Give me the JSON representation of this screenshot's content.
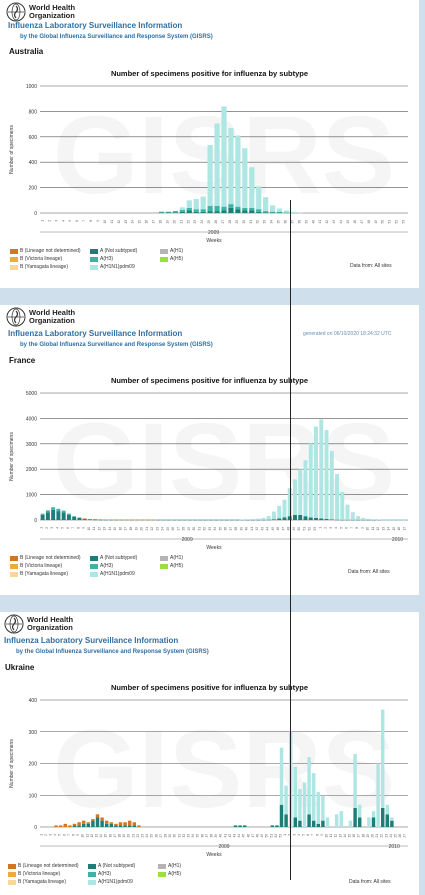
{
  "logo": {
    "line1": "World Health",
    "line2": "Organization"
  },
  "system": {
    "title": "Influenza Laboratory Surveillance Information",
    "subtitle": "by the Global Influenza Surveillance and Response System (GISRS)"
  },
  "generated_text": "generated on 06/10/2020 18:24:32 UTC",
  "data_from": "Data from: All sites",
  "data_from_ukraine": "Data from: All sites",
  "chart_title": "Number of specimens positive for influenza by subtype",
  "ylabel": "Number of specimens",
  "xlabel": "Weeks",
  "watermark": "GISRS",
  "legend": {
    "items": [
      {
        "label": "B (Lineage not determined)",
        "color": "#d2771f"
      },
      {
        "label": "B (Victoria lineage)",
        "color": "#f0a93a"
      },
      {
        "label": "B (Yamagata lineage)",
        "color": "#f6d59e"
      },
      {
        "label": "A (Not subtyped)",
        "color": "#1e7d78"
      },
      {
        "label": "A(H3)",
        "color": "#3fb2a6"
      },
      {
        "label": "A(H1N1)pdm09",
        "color": "#aee6e3"
      },
      {
        "label": "A(H1)",
        "color": "#b4b4b4"
      },
      {
        "label": "A(H5)",
        "color": "#9be03a"
      }
    ]
  },
  "colors": {
    "not_subtyped": "#1e7d78",
    "h3": "#3fb2a6",
    "pdm09": "#aee6e3",
    "b_lineage_nd": "#d2771f",
    "h1": "#b4b4b4"
  },
  "chart_data": [
    {
      "country": "Australia",
      "type": "bar",
      "title": "Number of specimens positive for influenza by subtype",
      "xlabel": "Weeks",
      "ylabel": "Number of specimens",
      "ylim": [
        0,
        1000
      ],
      "yticks": [
        0,
        200,
        400,
        600,
        800,
        1000
      ],
      "grid": true,
      "year_labels": [
        {
          "label": "2009",
          "at_index": 25
        }
      ],
      "weeks": [
        "1",
        "2",
        "3",
        "4",
        "5",
        "6",
        "7",
        "8",
        "9",
        "10",
        "11",
        "12",
        "13",
        "14",
        "15",
        "16",
        "17",
        "18",
        "19",
        "20",
        "21",
        "22",
        "23",
        "24",
        "25",
        "26",
        "27",
        "28",
        "29",
        "30",
        "31",
        "32",
        "33",
        "34",
        "35",
        "36",
        "37",
        "38",
        "39",
        "40",
        "41",
        "42",
        "43",
        "44",
        "45",
        "46",
        "47",
        "48",
        "49",
        "50",
        "51",
        "52",
        "53"
      ],
      "series": [
        {
          "name": "A (Not subtyped)",
          "key": "not_subtyped",
          "values": [
            0,
            0,
            0,
            0,
            0,
            0,
            0,
            0,
            0,
            0,
            0,
            0,
            0,
            0,
            0,
            0,
            0,
            5,
            5,
            5,
            10,
            20,
            10,
            10,
            15,
            15,
            20,
            40,
            30,
            20,
            20,
            10,
            5,
            5,
            5,
            0,
            0,
            0,
            0,
            0,
            0,
            0,
            0,
            0,
            0,
            0,
            0,
            0,
            0,
            0,
            0,
            0,
            0
          ]
        },
        {
          "name": "A(H3)",
          "key": "h3",
          "values": [
            0,
            0,
            0,
            0,
            0,
            0,
            0,
            0,
            0,
            0,
            0,
            0,
            0,
            0,
            0,
            0,
            0,
            5,
            5,
            10,
            15,
            20,
            20,
            20,
            40,
            40,
            30,
            30,
            20,
            20,
            20,
            20,
            10,
            5,
            5,
            5,
            0,
            0,
            0,
            0,
            0,
            0,
            0,
            0,
            0,
            0,
            0,
            0,
            0,
            0,
            0,
            0,
            0
          ]
        },
        {
          "name": "A(H1N1)pdm09",
          "key": "pdm09",
          "values": [
            0,
            0,
            0,
            0,
            0,
            0,
            0,
            0,
            0,
            0,
            0,
            0,
            0,
            0,
            0,
            0,
            0,
            0,
            0,
            0,
            20,
            60,
            80,
            100,
            480,
            650,
            790,
            600,
            560,
            470,
            320,
            180,
            110,
            50,
            25,
            15,
            10,
            5,
            0,
            0,
            0,
            0,
            0,
            0,
            0,
            0,
            0,
            0,
            0,
            0,
            0,
            0,
            0
          ]
        }
      ]
    },
    {
      "country": "France",
      "type": "bar",
      "title": "Number of specimens positive for influenza by subtype",
      "xlabel": "Weeks",
      "ylabel": "Number of specimens",
      "ylim": [
        0,
        5000
      ],
      "yticks": [
        0,
        1000,
        2000,
        3000,
        4000,
        5000
      ],
      "grid": true,
      "year_labels": [
        {
          "label": "2009",
          "at_index": 28
        },
        {
          "label": "2010",
          "at_index": 68
        }
      ],
      "weeks_count": 70,
      "series": [
        {
          "name": "A (Not subtyped)",
          "key": "not_subtyped",
          "values": [
            200,
            300,
            400,
            350,
            300,
            200,
            120,
            80,
            40,
            20,
            10,
            5,
            5,
            5,
            5,
            5,
            5,
            5,
            5,
            5,
            5,
            5,
            5,
            5,
            5,
            5,
            5,
            5,
            5,
            5,
            5,
            5,
            5,
            5,
            5,
            5,
            5,
            5,
            5,
            5,
            5,
            5,
            5,
            10,
            30,
            60,
            100,
            150,
            200,
            200,
            150,
            100,
            80,
            60,
            40,
            20,
            10,
            5,
            5,
            5,
            5,
            5,
            5,
            5,
            5,
            5,
            5,
            5,
            5,
            5
          ]
        },
        {
          "name": "A(H3)",
          "key": "h3",
          "values": [
            50,
            80,
            100,
            90,
            70,
            50,
            30,
            20,
            10,
            5,
            5,
            0,
            0,
            0,
            0,
            0,
            0,
            0,
            0,
            0,
            0,
            0,
            0,
            0,
            0,
            0,
            0,
            0,
            0,
            0,
            0,
            0,
            0,
            0,
            0,
            0,
            0,
            0,
            0,
            0,
            0,
            0,
            0,
            0,
            0,
            0,
            0,
            0,
            0,
            0,
            0,
            0,
            0,
            0,
            0,
            0,
            0,
            0,
            0,
            0,
            0,
            0,
            0,
            0,
            0,
            0,
            0,
            0,
            0,
            0
          ]
        },
        {
          "name": "A(H1N1)pdm09",
          "key": "pdm09",
          "values": [
            0,
            0,
            0,
            0,
            0,
            0,
            0,
            0,
            0,
            0,
            0,
            0,
            0,
            0,
            0,
            0,
            0,
            0,
            0,
            0,
            0,
            0,
            0,
            0,
            0,
            0,
            0,
            0,
            0,
            0,
            0,
            0,
            0,
            0,
            0,
            0,
            0,
            0,
            10,
            20,
            30,
            50,
            80,
            150,
            300,
            500,
            700,
            1100,
            1400,
            1800,
            2200,
            2900,
            3600,
            3900,
            3500,
            2700,
            1800,
            1100,
            600,
            300,
            150,
            80,
            40,
            20,
            10,
            5,
            5,
            5,
            5,
            5
          ]
        },
        {
          "name": "B (Lineage not determined)",
          "key": "b_lineage_nd",
          "values": [
            0,
            0,
            0,
            0,
            0,
            0,
            0,
            0,
            10,
            15,
            20,
            20,
            15,
            10,
            10,
            5,
            5,
            5,
            5,
            5,
            5,
            5,
            0,
            0,
            0,
            0,
            0,
            0,
            0,
            0,
            0,
            0,
            0,
            0,
            0,
            0,
            0,
            0,
            0,
            0,
            0,
            0,
            0,
            0,
            0,
            0,
            0,
            0,
            0,
            0,
            0,
            0,
            0,
            0,
            0,
            0,
            0,
            0,
            0,
            0,
            0,
            0,
            0,
            0,
            0,
            0,
            0,
            0,
            0,
            0
          ]
        }
      ]
    },
    {
      "country": "Ukraine",
      "type": "bar",
      "title": "Number of specimens positive for influenza by subtype",
      "xlabel": "Weeks",
      "ylabel": "Number of specimens",
      "ylim": [
        0,
        400
      ],
      "yticks": [
        0,
        100,
        200,
        300,
        400
      ],
      "grid": true,
      "year_labels": [
        {
          "label": "2009",
          "at_index": 40
        },
        {
          "label": "2010",
          "at_index": 77
        }
      ],
      "weeks_count": 80,
      "series": [
        {
          "name": "A (Not subtyped)",
          "key": "not_subtyped",
          "values": [
            0,
            0,
            0,
            0,
            0,
            0,
            0,
            5,
            5,
            10,
            10,
            20,
            30,
            20,
            10,
            10,
            5,
            5,
            5,
            5,
            5,
            0,
            0,
            0,
            0,
            0,
            0,
            0,
            0,
            0,
            0,
            0,
            0,
            0,
            0,
            0,
            0,
            0,
            0,
            0,
            0,
            0,
            5,
            5,
            5,
            0,
            0,
            0,
            0,
            0,
            5,
            5,
            70,
            40,
            0,
            30,
            20,
            0,
            40,
            20,
            10,
            20,
            0,
            0,
            0,
            0,
            0,
            0,
            60,
            30,
            0,
            0,
            30,
            0,
            60,
            40,
            20,
            0,
            0,
            0
          ]
        },
        {
          "name": "A(H3)",
          "key": "h3",
          "values": [
            0,
            0,
            0,
            0,
            0,
            0,
            0,
            0,
            0,
            0,
            0,
            0,
            0,
            0,
            0,
            0,
            0,
            0,
            0,
            0,
            0,
            0,
            0,
            0,
            0,
            0,
            0,
            0,
            0,
            0,
            0,
            0,
            0,
            0,
            0,
            0,
            0,
            0,
            0,
            0,
            0,
            0,
            0,
            0,
            0,
            0,
            0,
            0,
            0,
            0,
            0,
            0,
            0,
            0,
            0,
            0,
            0,
            0,
            0,
            0,
            0,
            0,
            0,
            0,
            0,
            0,
            0,
            0,
            0,
            0,
            0,
            0,
            0,
            0,
            0,
            0,
            0,
            0,
            0,
            0
          ]
        },
        {
          "name": "A(H1N1)pdm09",
          "key": "pdm09",
          "values": [
            0,
            0,
            0,
            0,
            0,
            0,
            0,
            0,
            0,
            0,
            0,
            0,
            0,
            0,
            0,
            0,
            0,
            0,
            0,
            0,
            0,
            0,
            0,
            0,
            0,
            0,
            0,
            0,
            0,
            0,
            0,
            0,
            0,
            0,
            0,
            0,
            0,
            0,
            0,
            0,
            0,
            0,
            0,
            0,
            0,
            0,
            0,
            0,
            0,
            0,
            0,
            0,
            180,
            90,
            300,
            160,
            100,
            140,
            180,
            150,
            100,
            80,
            30,
            0,
            40,
            50,
            0,
            20,
            170,
            40,
            0,
            30,
            20,
            200,
            310,
            30,
            10,
            0,
            0,
            0
          ]
        },
        {
          "name": "B (Lineage not determined)",
          "key": "b_lineage_nd",
          "values": [
            0,
            0,
            0,
            5,
            5,
            10,
            5,
            5,
            10,
            10,
            5,
            5,
            10,
            10,
            10,
            5,
            5,
            10,
            10,
            15,
            10,
            5,
            0,
            0,
            0,
            0,
            0,
            0,
            0,
            0,
            0,
            0,
            0,
            0,
            0,
            0,
            0,
            0,
            0,
            0,
            0,
            0,
            0,
            0,
            0,
            0,
            0,
            0,
            0,
            0,
            0,
            0,
            0,
            0,
            0,
            0,
            0,
            0,
            0,
            0,
            0,
            0,
            0,
            0,
            0,
            0,
            0,
            0,
            0,
            0,
            0,
            0,
            0,
            0,
            0,
            0,
            0,
            0,
            0,
            0
          ]
        }
      ]
    }
  ]
}
